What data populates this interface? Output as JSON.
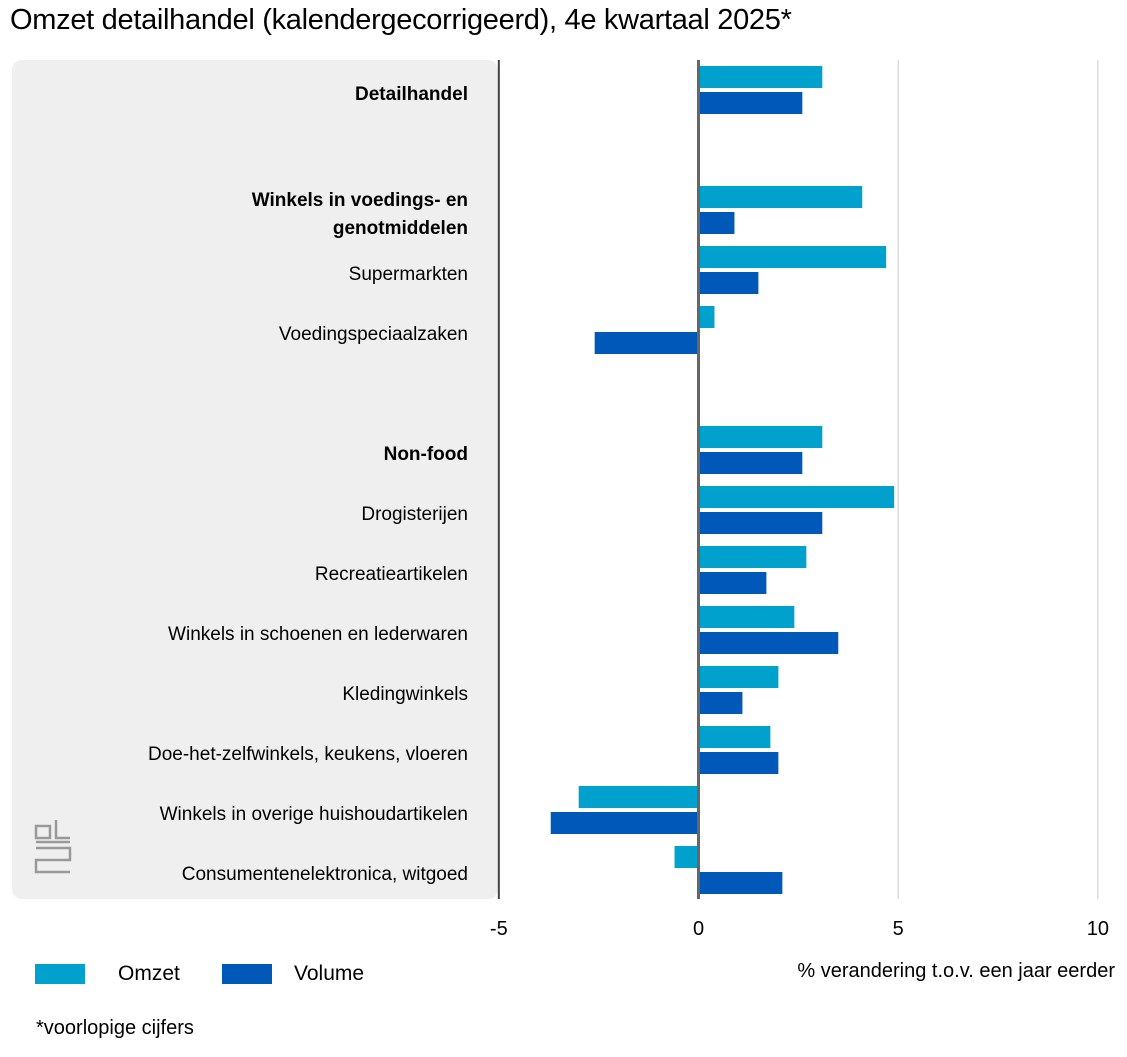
{
  "title": "Omzet detailhandel (kalendergecorrigeerd), 4e kwartaal  2025*",
  "footnote": "*voorlopige cijfers",
  "colors": {
    "omzet": "#00a1cd",
    "volume": "#0058b8",
    "panel": "#efefef",
    "axis": "#666666",
    "grid": "#cccccc"
  },
  "logo": "cbs",
  "chart_data": {
    "type": "bar",
    "orientation": "horizontal",
    "title": "Omzet detailhandel (kalendergecorrigeerd), 4e kwartaal  2025*",
    "xlabel": "% verandering t.o.v. een jaar eerder",
    "xlim": [
      -5,
      10
    ],
    "xticks": [
      "-5",
      "0",
      "5",
      "10"
    ],
    "grid": true,
    "legend": "bottom-left",
    "categories": [
      {
        "label": "Detailhandel",
        "bold": true
      },
      {
        "label": "",
        "bold": false
      },
      {
        "label": "Winkels in voedings- en genotmiddelen",
        "bold": true
      },
      {
        "label": "Supermarkten",
        "bold": false
      },
      {
        "label": "Voedingspeciaalzaken",
        "bold": false
      },
      {
        "label": "",
        "bold": false
      },
      {
        "label": "Non-food",
        "bold": true
      },
      {
        "label": "Drogisterijen",
        "bold": false
      },
      {
        "label": "Recreatieartikelen",
        "bold": false
      },
      {
        "label": "Winkels in schoenen en lederwaren",
        "bold": false
      },
      {
        "label": "Kledingwinkels",
        "bold": false
      },
      {
        "label": "Doe-het-zelfwinkels, keukens, vloeren",
        "bold": false
      },
      {
        "label": "Winkels in overige huishoudartikelen",
        "bold": false
      },
      {
        "label": "Consumentenelektronica, witgoed",
        "bold": false
      }
    ],
    "series": [
      {
        "name": "Omzet",
        "values": [
          3.1,
          null,
          4.1,
          4.7,
          0.4,
          null,
          3.1,
          4.9,
          2.7,
          2.4,
          2.0,
          1.8,
          -3.0,
          -0.6
        ]
      },
      {
        "name": "Volume",
        "values": [
          2.6,
          null,
          0.9,
          1.5,
          -2.6,
          null,
          2.6,
          3.1,
          1.7,
          3.5,
          1.1,
          2.0,
          -3.7,
          2.1
        ]
      }
    ]
  }
}
